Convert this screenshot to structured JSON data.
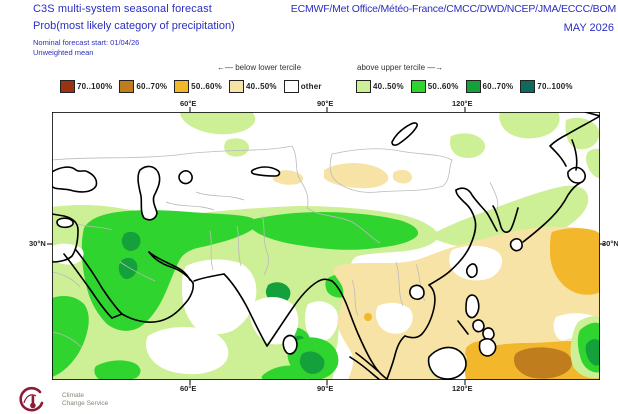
{
  "header": {
    "product": "C3S multi-system seasonal forecast",
    "centers": "ECMWF/Met Office/Météo-France/CMCC/DWD/NCEP/JMA/ECCC/BOM",
    "variable": "Prob(most likely category of precipitation)",
    "valid": "MAY 2026",
    "start": "Nominal forecast start: 01/04/26",
    "method": "Unweighted mean"
  },
  "colors": {
    "header_text": "#2b2fc0",
    "below_70_100": "#9a3311",
    "below_60_70": "#bf7d1e",
    "below_50_60": "#f2b72b",
    "below_40_50": "#f7e3a6",
    "other": "#ffffff",
    "above_40_50": "#cdef96",
    "above_50_60": "#2fd42f",
    "above_60_70": "#14a03a",
    "above_70_100": "#0e6b5c",
    "coastline": "#000000",
    "country_border": "#bbbbbb",
    "logo": "#8c1c35"
  },
  "legend": {
    "below_direction": "←— below lower tercile",
    "above_direction": "above upper tercile —→",
    "below_items": [
      {
        "label": "70..100%",
        "color_key": "below_70_100"
      },
      {
        "label": "60..70%",
        "color_key": "below_60_70"
      },
      {
        "label": "50..60%",
        "color_key": "below_50_60"
      },
      {
        "label": "40..50%",
        "color_key": "below_40_50"
      },
      {
        "label": "other",
        "color_key": "other"
      }
    ],
    "above_items": [
      {
        "label": "40..50%",
        "color_key": "above_40_50"
      },
      {
        "label": "50..60%",
        "color_key": "above_50_60"
      },
      {
        "label": "60..70%",
        "color_key": "above_60_70"
      },
      {
        "label": "70..100%",
        "color_key": "above_70_100"
      }
    ]
  },
  "map": {
    "top_ticks": [
      "60°E",
      "90°E",
      "120°E"
    ],
    "bottom_ticks": [
      "60°E",
      "90°E",
      "120°E"
    ],
    "left_tick": "30°N",
    "right_tick": "30°N"
  },
  "logo": {
    "line1": "Climate",
    "line2": "Change Service"
  }
}
